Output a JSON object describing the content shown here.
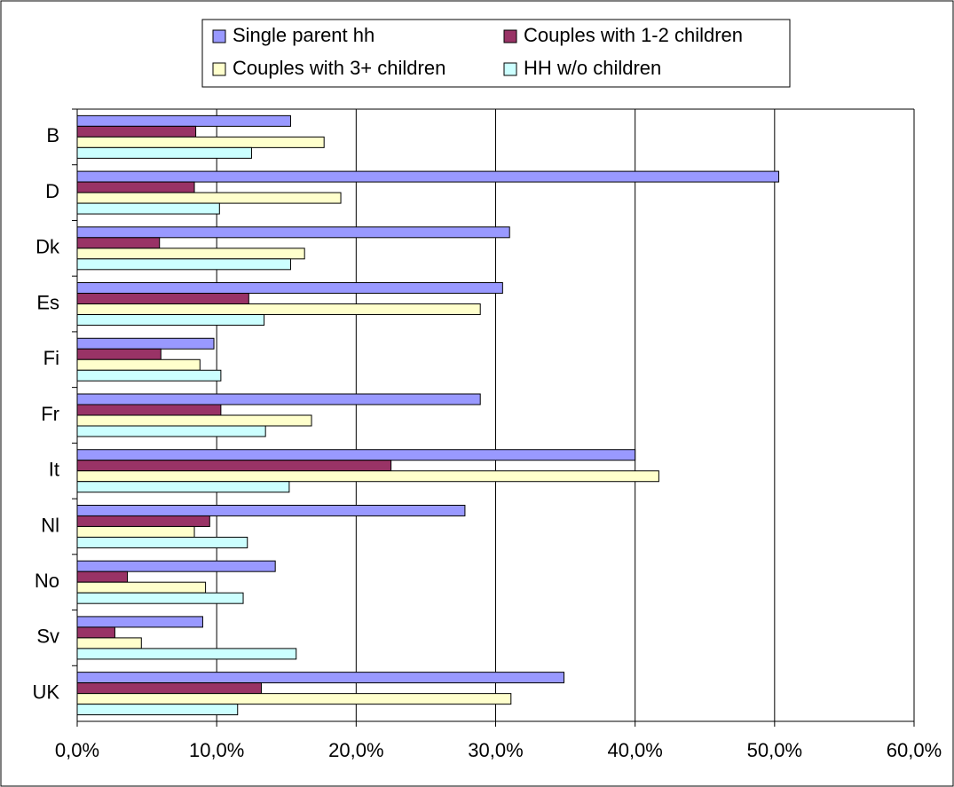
{
  "chart_data": {
    "type": "hbar",
    "categories": [
      "B",
      "D",
      "Dk",
      "Es",
      "Fi",
      "Fr",
      "It",
      "Nl",
      "No",
      "Sv",
      "UK"
    ],
    "series": [
      {
        "name": "Single parent hh",
        "color": "#9999ff",
        "values": [
          15.3,
          50.3,
          31.0,
          30.5,
          9.8,
          28.9,
          40.0,
          27.8,
          14.2,
          9.0,
          34.9
        ]
      },
      {
        "name": "Couples with 1-2 children",
        "color": "#993366",
        "values": [
          8.5,
          8.4,
          5.9,
          12.3,
          6.0,
          10.3,
          22.5,
          9.5,
          3.6,
          2.7,
          13.2
        ]
      },
      {
        "name": "Couples with 3+ children",
        "color": "#ffffcc",
        "values": [
          17.7,
          18.9,
          16.3,
          28.9,
          8.8,
          16.8,
          41.7,
          8.4,
          9.2,
          4.6,
          31.1
        ]
      },
      {
        "name": "HH w/o children",
        "color": "#ccffff",
        "values": [
          12.5,
          10.2,
          15.3,
          13.4,
          10.3,
          13.5,
          15.2,
          12.2,
          11.9,
          15.7,
          11.5
        ]
      }
    ],
    "xlim": [
      0,
      60
    ],
    "xticks": [
      {
        "value": 0,
        "label": "0,0%"
      },
      {
        "value": 10,
        "label": "10,0%"
      },
      {
        "value": 20,
        "label": "20,0%"
      },
      {
        "value": 30,
        "label": "30,0%"
      },
      {
        "value": 40,
        "label": "40,0%"
      },
      {
        "value": 50,
        "label": "50,0%"
      },
      {
        "value": 60,
        "label": "60,0%"
      }
    ],
    "grid": true
  }
}
